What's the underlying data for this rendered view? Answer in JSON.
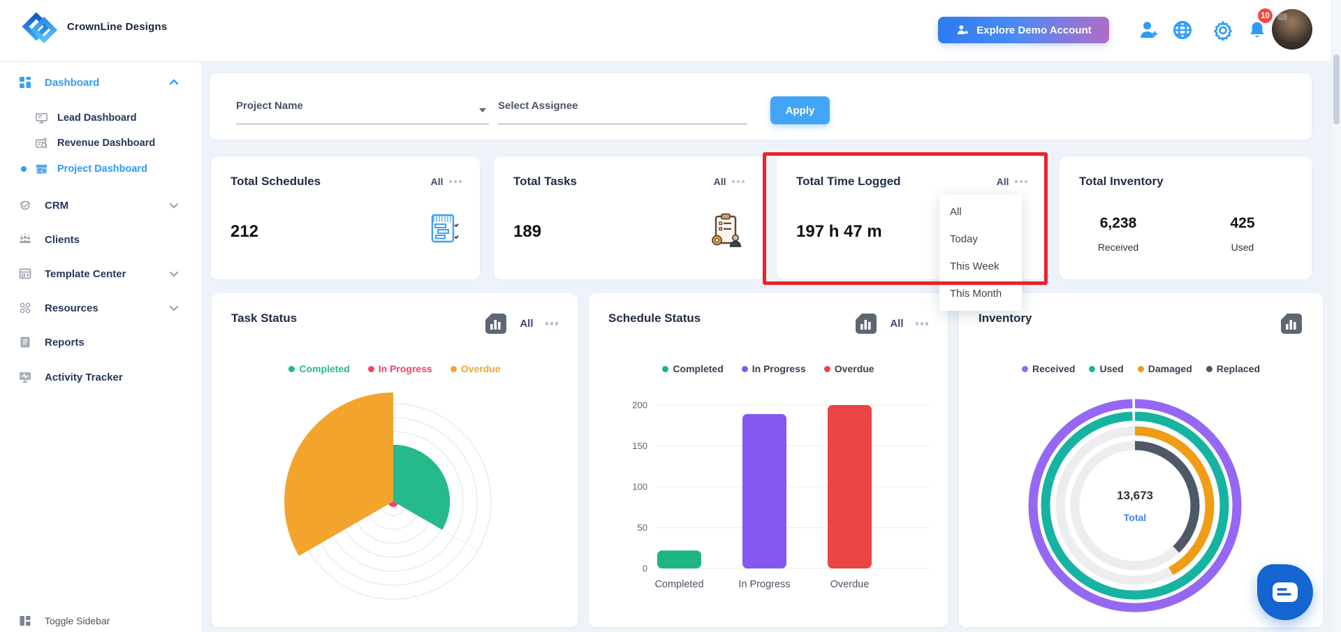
{
  "brand": {
    "name": "CrownLine Designs"
  },
  "topbar": {
    "explore_button": {
      "label": "Explore Demo Account"
    },
    "notification_badge": "10"
  },
  "sidebar": {
    "dashboard": {
      "label": "Dashboard"
    },
    "sub_items": [
      {
        "label": "Lead Dashboard"
      },
      {
        "label": "Revenue Dashboard"
      },
      {
        "label": "Project Dashboard"
      }
    ],
    "items": [
      {
        "label": "CRM"
      },
      {
        "label": "Clients"
      },
      {
        "label": "Template Center"
      },
      {
        "label": "Resources"
      },
      {
        "label": "Reports"
      },
      {
        "label": "Activity Tracker"
      }
    ],
    "toggle_label": "Toggle Sidebar"
  },
  "filters": {
    "project_name_label": "Project Name",
    "assignee_label": "Select Assignee",
    "apply_label": "Apply"
  },
  "stats": {
    "schedules": {
      "title": "Total Schedules",
      "filter": "All",
      "value": "212"
    },
    "tasks": {
      "title": "Total Tasks",
      "filter": "All",
      "value": "189"
    },
    "time_logged": {
      "title": "Total Time Logged",
      "filter": "All",
      "value": "197 h 47 m",
      "dropdown_options": [
        "All",
        "Today",
        "This Week",
        "This Month"
      ]
    },
    "inventory": {
      "title": "Total Inventory",
      "metrics": [
        {
          "value": "6,238",
          "label": "Received"
        },
        {
          "value": "425",
          "label": "Used"
        }
      ]
    }
  },
  "chart_data": [
    {
      "type": "polar_area",
      "title": "Task Status",
      "filter": "All",
      "categories": [
        "Completed",
        "In Progress",
        "Overdue"
      ],
      "values": [
        52,
        5,
        100
      ],
      "colors": [
        "#26b98b",
        "#f5426b",
        "#f2a42d"
      ],
      "legend_position": "top",
      "grid": "concentric rings, unlabeled radial axis",
      "note": "values are relative estimates; three equal 120-degree sectors starting at top"
    },
    {
      "type": "bar",
      "title": "Schedule Status",
      "filter": "All",
      "categories": [
        "Completed",
        "In Progress",
        "Overdue"
      ],
      "values": [
        22,
        189,
        200
      ],
      "colors": [
        "#1db584",
        "#8458f0",
        "#ea4444"
      ],
      "ylim": [
        0,
        200
      ],
      "yticks": [
        0,
        50,
        100,
        150,
        200
      ],
      "grid": "horizontal",
      "legend_position": "top"
    },
    {
      "type": "radial_rings",
      "title": "Inventory",
      "categories": [
        "Received",
        "Used",
        "Damaged",
        "Replaced"
      ],
      "values_percent": [
        100,
        100,
        42,
        38
      ],
      "colors": [
        "#9468f2",
        "#16b3a2",
        "#f09d15",
        "#4e5867"
      ],
      "center_value": "13,673",
      "center_label": "Total",
      "legend_position": "top"
    }
  ]
}
